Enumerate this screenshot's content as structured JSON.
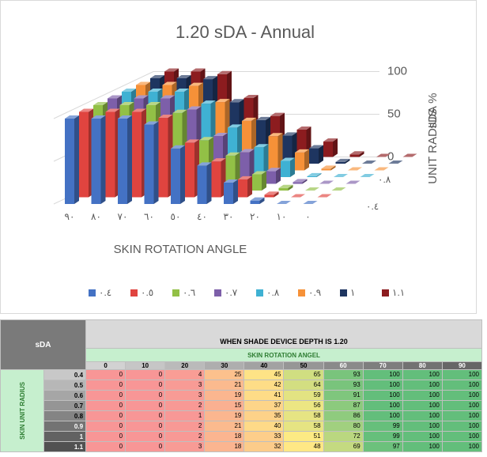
{
  "chart_data": {
    "type": "bar3d",
    "title": "1.20 sDA - Annual",
    "x_label": "SKIN ROTATION ANGLE",
    "z_label": "sDA %",
    "depth_label": "UNIT RADIUS",
    "categories": [
      "٠",
      "١٠",
      "٢٠",
      "٣٠",
      "٤٠",
      "٥٠",
      "٦٠",
      "٧٠",
      "٨٠",
      "٩٠"
    ],
    "x_reversed": true,
    "zlim": [
      0,
      100
    ],
    "zticks": [
      0,
      50,
      100
    ],
    "grid": true,
    "legend": "bottom",
    "series": [
      {
        "name": "٠.٤",
        "color": "#4472c4",
        "values": [
          0,
          0,
          4,
          25,
          45,
          65,
          93,
          100,
          100,
          100
        ]
      },
      {
        "name": "٠.٥",
        "color": "#e0443f",
        "values": [
          0,
          0,
          3,
          21,
          42,
          64,
          93,
          100,
          100,
          100
        ]
      },
      {
        "name": "٠.٦",
        "color": "#92c046",
        "values": [
          0,
          0,
          3,
          19,
          41,
          59,
          91,
          100,
          100,
          100
        ]
      },
      {
        "name": "٠.٧",
        "color": "#7d5fa9",
        "values": [
          0,
          0,
          2,
          15,
          37,
          56,
          87,
          100,
          100,
          100
        ]
      },
      {
        "name": "٠.٨",
        "color": "#3fb1d3",
        "values": [
          0,
          0,
          1,
          19,
          35,
          58,
          86,
          100,
          100,
          100
        ]
      },
      {
        "name": "٠.٩",
        "color": "#f69138",
        "values": [
          0,
          0,
          2,
          21,
          40,
          58,
          80,
          99,
          100,
          100
        ]
      },
      {
        "name": "١",
        "color": "#1e3560",
        "values": [
          0,
          0,
          2,
          18,
          33,
          51,
          72,
          99,
          100,
          100
        ]
      },
      {
        "name": "١.١",
        "color": "#8c1c1f",
        "values": [
          0,
          0,
          3,
          18,
          32,
          48,
          69,
          97,
          100,
          100
        ]
      }
    ]
  },
  "table": {
    "corner": "sDA",
    "title": "WHEN SHADE DEVICE DEPTH IS 1.20",
    "subtitle": "SKIN ROTATION ANGEL",
    "columns": [
      "0",
      "10",
      "20",
      "30",
      "40",
      "50",
      "60",
      "70",
      "80",
      "90"
    ],
    "row_header": "SKIN UNIT RADIUS",
    "rows": [
      "0.4",
      "0.5",
      "0.6",
      "0.7",
      "0.8",
      "0.9",
      "1",
      "1.1"
    ]
  }
}
